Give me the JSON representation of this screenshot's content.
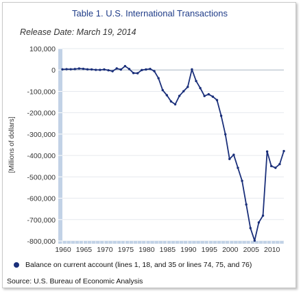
{
  "chart_data": {
    "type": "line",
    "title": "Table 1. U.S. International Transactions",
    "subtitle": "Release Date: March 19, 2014",
    "ylabel": "[Millions of dollars]",
    "xlabel": "",
    "source": "Source: U.S. Bureau of Economic Analysis",
    "xlim": [
      1960,
      2013
    ],
    "ylim": [
      -800000,
      100000
    ],
    "x_ticks": [
      1960,
      1965,
      1970,
      1975,
      1980,
      1985,
      1990,
      1995,
      2000,
      2005,
      2010
    ],
    "y_ticks": [
      100000,
      0,
      -100000,
      -200000,
      -300000,
      -400000,
      -500000,
      -600000,
      -700000,
      -800000
    ],
    "y_tick_labels": [
      "100,000",
      "0",
      "-100,000",
      "-200,000",
      "-300,000",
      "-400,000",
      "-500,000",
      "-600,000",
      "-700,000",
      "-800,000"
    ],
    "grid": true,
    "legend_position": "bottom",
    "x": [
      1960,
      1961,
      1962,
      1963,
      1964,
      1965,
      1966,
      1967,
      1968,
      1969,
      1970,
      1971,
      1972,
      1973,
      1974,
      1975,
      1976,
      1977,
      1978,
      1979,
      1980,
      1981,
      1982,
      1983,
      1984,
      1985,
      1986,
      1987,
      1988,
      1989,
      1990,
      1991,
      1992,
      1993,
      1994,
      1995,
      1996,
      1997,
      1998,
      1999,
      2000,
      2001,
      2002,
      2003,
      2004,
      2005,
      2006,
      2007,
      2008,
      2009,
      2010,
      2011,
      2012,
      2013
    ],
    "series": [
      {
        "name": "Balance on current account (lines 1, 18, and 35 or lines 74, 75, and 76)",
        "color": "#1a2f7a",
        "values": [
          2800,
          3800,
          3400,
          4400,
          6800,
          5400,
          3000,
          2600,
          600,
          400,
          2300,
          -1400,
          -5800,
          7100,
          2000,
          18100,
          4300,
          -14300,
          -15100,
          -300,
          2300,
          5000,
          -5500,
          -38700,
          -94300,
          -118200,
          -147200,
          -160700,
          -121200,
          -99500,
          -79000,
          2900,
          -51600,
          -84800,
          -121600,
          -113600,
          -124800,
          -140900,
          -214100,
          -300800,
          -416300,
          -396700,
          -457800,
          -518700,
          -629300,
          -739800,
          -798500,
          -713400,
          -681300,
          -381600,
          -449500,
          -457700,
          -440400,
          -379300
        ]
      }
    ]
  }
}
